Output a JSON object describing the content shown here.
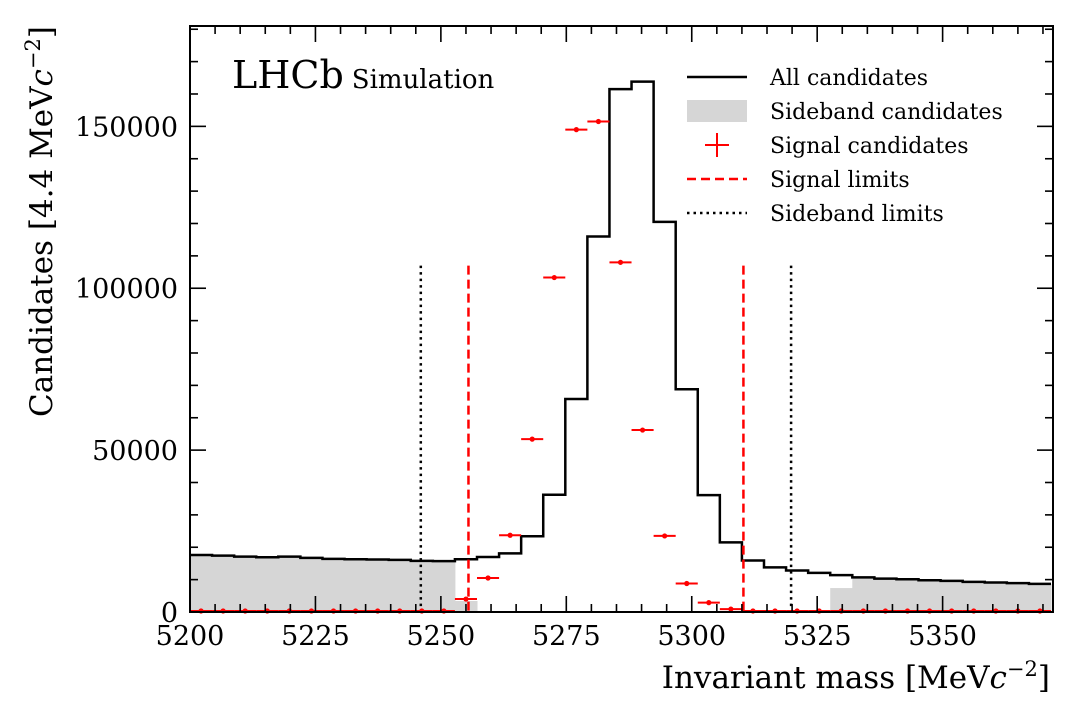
{
  "chart_data": {
    "type": "histogram",
    "brand": {
      "experiment": "LHCb",
      "tag": "Simulation"
    },
    "xlabel": {
      "text": "Invariant mass [MeV",
      "italic": "c",
      "sup": "−2",
      "close": "]"
    },
    "ylabel": {
      "text": "Candidates [4.4 MeV",
      "italic": "c",
      "sup": "−2",
      "close": "]"
    },
    "xlim": [
      5200,
      5372
    ],
    "ylim": [
      0,
      181000
    ],
    "x_major_ticks": [
      5200,
      5225,
      5250,
      5275,
      5300,
      5325,
      5350
    ],
    "y_major_ticks": [
      0,
      50000,
      100000,
      150000
    ],
    "x_tick_labels": [
      "5200",
      "5225",
      "5250",
      "5275",
      "5300",
      "5325",
      "5350"
    ],
    "y_tick_labels": [
      "0",
      "50000",
      "100000",
      "150000"
    ],
    "bin_width": 4.4,
    "bin_edges_start": 5200,
    "all_candidates": [
      17600,
      17400,
      17100,
      16900,
      17100,
      16700,
      16400,
      16300,
      16200,
      16100,
      15800,
      15700,
      16300,
      17000,
      18100,
      23400,
      36200,
      65800,
      116000,
      161500,
      163800,
      120500,
      68800,
      36100,
      21500,
      15900,
      13800,
      12800,
      12100,
      11400,
      10700,
      10300,
      10100,
      9800,
      9600,
      9300,
      9100,
      8900,
      8700
    ],
    "sideband_candidates": [
      17600,
      17400,
      17100,
      16900,
      17100,
      16700,
      16400,
      16300,
      16200,
      16100,
      15800,
      15600,
      3400,
      0,
      0,
      0,
      0,
      0,
      0,
      0,
      0,
      0,
      0,
      0,
      0,
      0,
      0,
      0,
      0,
      7400,
      10700,
      10300,
      10100,
      9800,
      9600,
      9300,
      9100,
      8900,
      8700
    ],
    "signal_x": [
      5202.2,
      5206.6,
      5211.0,
      5215.4,
      5219.8,
      5224.2,
      5228.6,
      5233.0,
      5237.4,
      5241.8,
      5246.2,
      5250.6,
      5255.0,
      5259.4,
      5263.8,
      5268.2,
      5272.6,
      5277.0,
      5281.4,
      5285.8,
      5290.2,
      5294.6,
      5299.0,
      5303.4,
      5307.8,
      5312.2,
      5316.6,
      5321.0,
      5325.4,
      5329.8,
      5334.2,
      5338.6,
      5343.0,
      5347.4,
      5351.8,
      5356.2,
      5360.6,
      5365.0,
      5369.4
    ],
    "signal_y": [
      0,
      0,
      0,
      0,
      0,
      0,
      0,
      0,
      0,
      0,
      0,
      0,
      4000,
      10500,
      23700,
      53400,
      103300,
      149000,
      151500,
      108000,
      56200,
      23500,
      8800,
      2900,
      900,
      0,
      0,
      0,
      0,
      0,
      0,
      0,
      0,
      0,
      0,
      0,
      0,
      0,
      0
    ],
    "signal_limits": [
      5255.5,
      5310.3
    ],
    "sideband_limits": [
      5246.0,
      5319.8
    ],
    "limit_line_top": 107000,
    "legend_position": "top-right",
    "legend": [
      {
        "label": "All candidates",
        "style": "line"
      },
      {
        "label": "Sideband candidates",
        "style": "fill"
      },
      {
        "label": "Signal candidates",
        "style": "marker"
      },
      {
        "label": "Signal limits",
        "style": "dashed"
      },
      {
        "label": "Sideband limits",
        "style": "dotted"
      }
    ],
    "colors": {
      "line": "#000000",
      "signal": "#ff0000",
      "sideband_fill": "#d6d6d6"
    }
  }
}
